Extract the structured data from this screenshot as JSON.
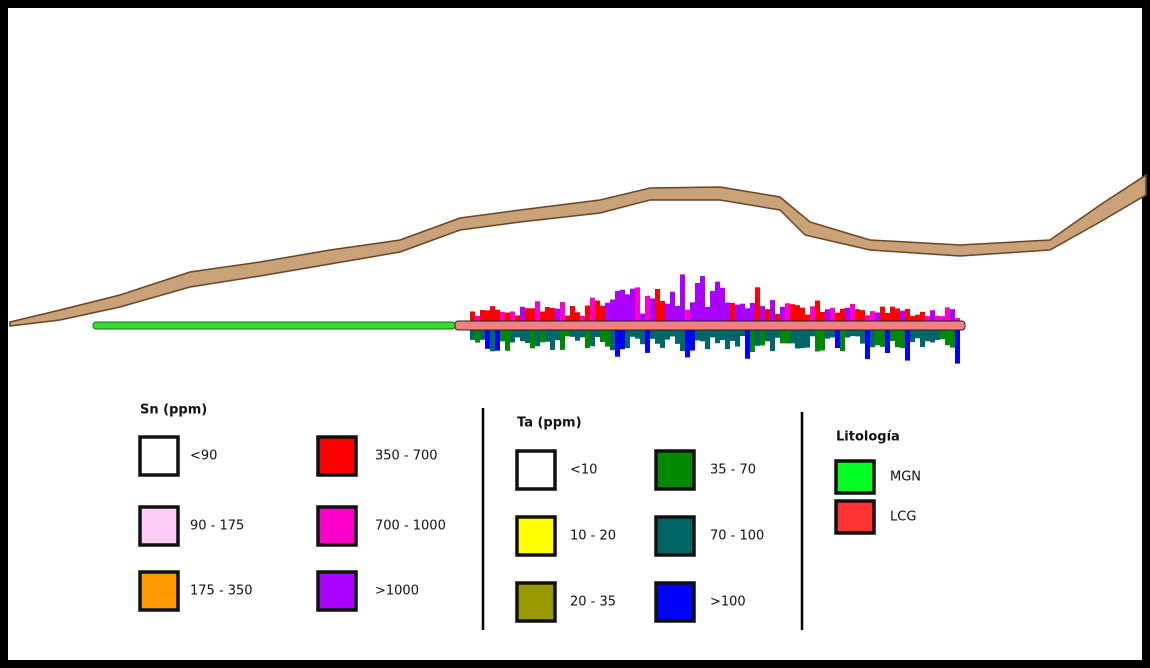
{
  "legends": [
    {
      "title": "Sn (ppm)",
      "items": [
        {
          "label": "<90",
          "color": "#ffffff"
        },
        {
          "label": "90 - 175",
          "color": "#ffccf5"
        },
        {
          "label": "175 - 350",
          "color": "#ff9900"
        },
        {
          "label": "350 - 700",
          "color": "#ff0000"
        },
        {
          "label": "700 - 1000",
          "color": "#ff00cc"
        },
        {
          "label": ">1000",
          "color": "#aa00ff"
        }
      ]
    },
    {
      "title": "Ta (ppm)",
      "items": [
        {
          "label": "<10",
          "color": "#ffffff"
        },
        {
          "label": "10 - 20",
          "color": "#ffff00"
        },
        {
          "label": "20 - 35",
          "color": "#999900"
        },
        {
          "label": "35 - 70",
          "color": "#008800"
        },
        {
          "label": "70 - 100",
          "color": "#006666"
        },
        {
          "label": ">100",
          "color": "#0000ff"
        }
      ]
    },
    {
      "title": "Litología",
      "items": [
        {
          "label": "MGN",
          "color": "#00ff22"
        },
        {
          "label": "LCG",
          "color": "#ff3333"
        }
      ]
    }
  ]
}
